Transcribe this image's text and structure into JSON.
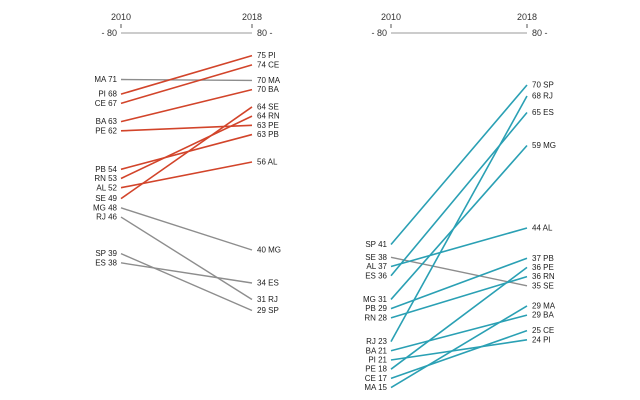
{
  "text_color": "#1c1c1c",
  "axis_color": "#999999",
  "tick_color": "#555555",
  "chart_data": [
    {
      "type": "slope",
      "panel": "left",
      "title": "",
      "x_tick_labels": [
        "2010",
        "2018"
      ],
      "axis_start_label": "- 80",
      "axis_end_label": "80 -",
      "axis_max": 80,
      "accent_color": "#d2442a",
      "muted_color": "#8d8d8d",
      "left_labels": [
        "MA 71",
        "PI 68",
        "CE 67",
        "BA 63",
        "PE 62",
        "PB 54",
        "RN 53",
        "AL 52",
        "SE 49",
        "MG 48",
        "RJ 46",
        "SP 39",
        "ES 38"
      ],
      "right_labels": [
        "75 PI",
        "74 CE",
        "70 MA",
        "70 BA",
        "64 SE",
        "64 RN",
        "63 PE",
        "63 PB",
        "56 AL",
        "40 MG",
        "34 ES",
        "31 RJ",
        "29 SP"
      ],
      "series": [
        {
          "state": "MA",
          "from": 71,
          "to": 70,
          "highlight": false
        },
        {
          "state": "PI",
          "from": 68,
          "to": 75,
          "highlight": true
        },
        {
          "state": "CE",
          "from": 67,
          "to": 74,
          "highlight": true
        },
        {
          "state": "BA",
          "from": 63,
          "to": 70,
          "highlight": true
        },
        {
          "state": "PE",
          "from": 62,
          "to": 63,
          "highlight": true
        },
        {
          "state": "PB",
          "from": 54,
          "to": 63,
          "highlight": true
        },
        {
          "state": "RN",
          "from": 53,
          "to": 64,
          "highlight": true
        },
        {
          "state": "AL",
          "from": 52,
          "to": 56,
          "highlight": true
        },
        {
          "state": "SE",
          "from": 49,
          "to": 64,
          "highlight": true
        },
        {
          "state": "MG",
          "from": 48,
          "to": 40,
          "highlight": false
        },
        {
          "state": "RJ",
          "from": 46,
          "to": 31,
          "highlight": false
        },
        {
          "state": "SP",
          "from": 39,
          "to": 29,
          "highlight": false
        },
        {
          "state": "ES",
          "from": 38,
          "to": 34,
          "highlight": false
        }
      ]
    },
    {
      "type": "slope",
      "panel": "right",
      "title": "",
      "x_tick_labels": [
        "2010",
        "2018"
      ],
      "axis_start_label": "- 80",
      "axis_end_label": "80 -",
      "axis_max": 80,
      "accent_color": "#2aa0b4",
      "muted_color": "#8d8d8d",
      "left_labels": [
        "SP 41",
        "SE 38",
        "AL 37",
        "ES 36",
        "MG 31",
        "PB 29",
        "RN 28",
        "RJ 23",
        "BA 21",
        "PI 21",
        "PE 18",
        "CE 17",
        "MA 15"
      ],
      "right_labels": [
        "70 SP",
        "68 RJ",
        "65 ES",
        "59 MG",
        "44 AL",
        "37 PB",
        "36 PE",
        "36 RN",
        "35 SE",
        "29 MA",
        "29 BA",
        "25 CE",
        "24 PI"
      ],
      "series": [
        {
          "state": "SP",
          "from": 41,
          "to": 70,
          "highlight": true
        },
        {
          "state": "SE",
          "from": 38,
          "to": 35,
          "highlight": false
        },
        {
          "state": "AL",
          "from": 37,
          "to": 44,
          "highlight": true
        },
        {
          "state": "ES",
          "from": 36,
          "to": 65,
          "highlight": true
        },
        {
          "state": "MG",
          "from": 31,
          "to": 59,
          "highlight": true
        },
        {
          "state": "PB",
          "from": 29,
          "to": 37,
          "highlight": true
        },
        {
          "state": "RN",
          "from": 28,
          "to": 36,
          "highlight": true
        },
        {
          "state": "RJ",
          "from": 23,
          "to": 68,
          "highlight": true
        },
        {
          "state": "BA",
          "from": 21,
          "to": 29,
          "highlight": true
        },
        {
          "state": "PI",
          "from": 21,
          "to": 24,
          "highlight": true
        },
        {
          "state": "PE",
          "from": 18,
          "to": 36,
          "highlight": true
        },
        {
          "state": "CE",
          "from": 17,
          "to": 25,
          "highlight": true
        },
        {
          "state": "MA",
          "from": 15,
          "to": 29,
          "highlight": true
        }
      ]
    }
  ]
}
